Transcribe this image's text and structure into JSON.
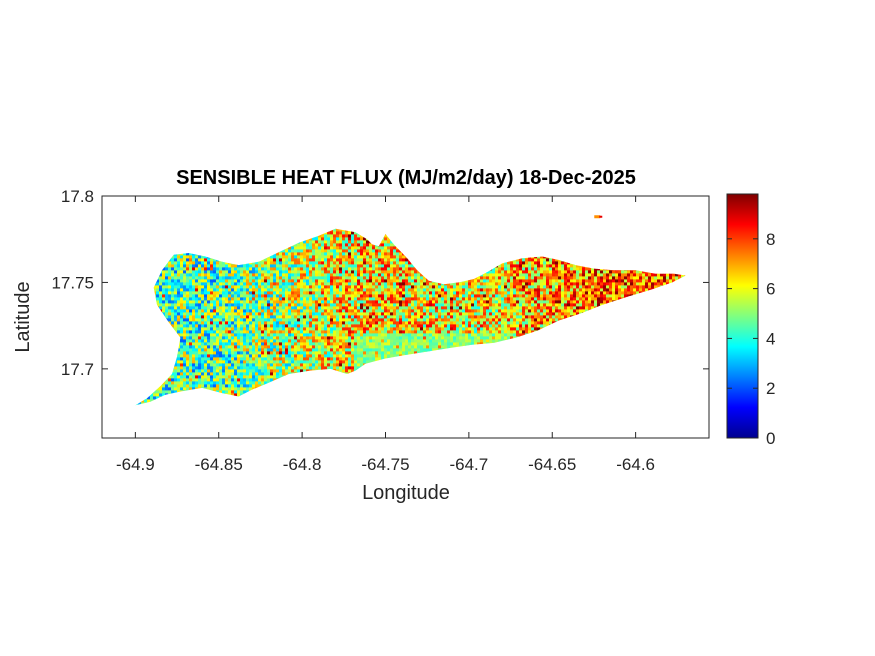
{
  "chart_data": {
    "type": "heatmap",
    "title": "SENSIBLE HEAT FLUX (MJ/m2/day) 18-Dec-2025",
    "xlabel": "Longitude",
    "ylabel": "Latitude",
    "xlim": [
      -64.92,
      -64.556
    ],
    "ylim": [
      17.66,
      17.8
    ],
    "x_ticks": [
      -64.9,
      -64.85,
      -64.8,
      -64.75,
      -64.7,
      -64.65,
      -64.6
    ],
    "x_tick_labels": [
      "-64.9",
      "-64.85",
      "-64.8",
      "-64.75",
      "-64.7",
      "-64.65",
      "-64.6"
    ],
    "y_ticks": [
      17.7,
      17.75,
      17.8
    ],
    "y_tick_labels": [
      "17.7",
      "17.75",
      "17.8"
    ],
    "colorbar": {
      "colormap": "jet",
      "range": [
        0,
        9.8
      ],
      "ticks": [
        0,
        2,
        4,
        6,
        8
      ],
      "tick_labels": [
        "0",
        "2",
        "4",
        "6",
        "8"
      ]
    },
    "grid": false,
    "regions": [
      {
        "name": "",
        "lon_range": [
          -64.9,
          -64.8
        ],
        "lat_center": 17.725,
        "typical_value": 4.5
      },
      {
        "name": "",
        "lon_range": [
          -64.8,
          -64.72
        ],
        "lat_center": 17.735,
        "typical_value": 6.5
      },
      {
        "name": "",
        "lon_range": [
          -64.72,
          -64.66
        ],
        "lat_center": 17.725,
        "typical_value": 6.0
      },
      {
        "name": "",
        "lon_range": [
          -64.66,
          -64.57
        ],
        "lat_center": 17.745,
        "typical_value": 7.5
      }
    ]
  }
}
